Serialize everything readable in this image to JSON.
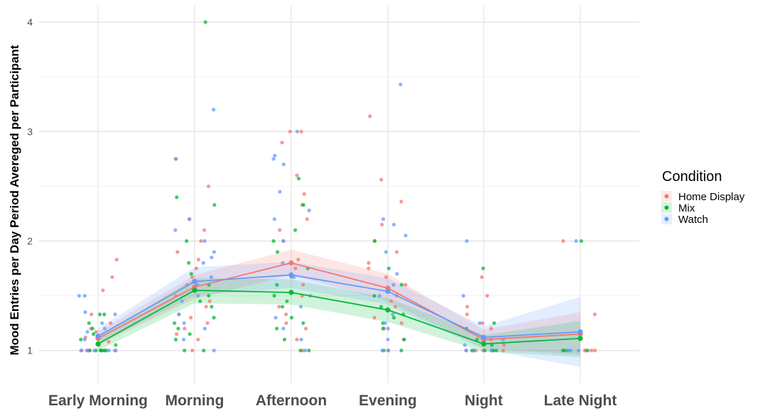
{
  "chart_data": {
    "type": "line",
    "title": "",
    "xlabel": "",
    "ylabel": "Mood Entries per Day Period Avereged per Participant",
    "categories": [
      "Early Morning",
      "Morning",
      "Afternoon",
      "Evening",
      "Night",
      "Late Night"
    ],
    "ylim": [
      0.7,
      4.15
    ],
    "yticks": [
      "1",
      "2",
      "3",
      "4"
    ],
    "grid": true,
    "legend": {
      "title": "Condition",
      "position": "right"
    },
    "series": [
      {
        "name": "Home Display",
        "color": "#f8766d",
        "values": [
          1.11,
          1.58,
          1.8,
          1.57,
          1.1,
          1.15
        ],
        "ci_low": [
          1.05,
          1.47,
          1.69,
          1.45,
          1.02,
          0.96
        ],
        "ci_high": [
          1.17,
          1.69,
          1.92,
          1.7,
          1.19,
          1.35
        ],
        "points": [
          [
            0,
            1
          ],
          [
            0,
            1
          ],
          [
            0,
            1
          ],
          [
            0,
            1
          ],
          [
            0,
            1
          ],
          [
            0,
            1.08
          ],
          [
            0,
            1.12
          ],
          [
            0,
            1.2
          ],
          [
            0,
            1.25
          ],
          [
            0,
            1.33
          ],
          [
            0,
            1.55
          ],
          [
            0,
            1.67
          ],
          [
            0,
            1.83
          ],
          [
            0,
            1.05
          ],
          [
            0,
            1
          ],
          [
            0,
            1.17
          ],
          [
            1,
            1
          ],
          [
            1,
            1.1
          ],
          [
            1,
            1.2
          ],
          [
            1,
            1.25
          ],
          [
            1,
            1.33
          ],
          [
            1,
            1.4
          ],
          [
            1,
            1.5
          ],
          [
            1,
            1.6
          ],
          [
            1,
            1.67
          ],
          [
            1,
            1.75
          ],
          [
            1,
            1.83
          ],
          [
            1,
            2
          ],
          [
            1,
            2.1
          ],
          [
            1,
            2.2
          ],
          [
            1,
            2.5
          ],
          [
            1,
            2.75
          ],
          [
            1,
            1.15
          ],
          [
            1,
            1.3
          ],
          [
            1,
            1.45
          ],
          [
            1,
            1.9
          ],
          [
            2,
            1
          ],
          [
            2,
            1.1
          ],
          [
            2,
            1.2
          ],
          [
            2,
            1.33
          ],
          [
            2,
            1.5
          ],
          [
            2,
            1.6
          ],
          [
            2,
            1.75
          ],
          [
            2,
            1.83
          ],
          [
            2,
            2
          ],
          [
            2,
            2.2
          ],
          [
            2,
            2.33
          ],
          [
            2,
            2.43
          ],
          [
            2,
            2.6
          ],
          [
            2,
            3
          ],
          [
            2,
            3
          ],
          [
            2,
            2.9
          ],
          [
            2,
            1.4
          ],
          [
            2,
            1.67
          ],
          [
            2,
            2.1
          ],
          [
            2,
            1.25
          ],
          [
            3,
            1
          ],
          [
            3,
            1.1
          ],
          [
            3,
            1.2
          ],
          [
            3,
            1.3
          ],
          [
            3,
            1.4
          ],
          [
            3,
            1.5
          ],
          [
            3,
            1.6
          ],
          [
            3,
            1.75
          ],
          [
            3,
            1.9
          ],
          [
            3,
            2
          ],
          [
            3,
            2.15
          ],
          [
            3,
            2.36
          ],
          [
            3,
            2.56
          ],
          [
            3,
            3.14
          ],
          [
            3,
            1.67
          ],
          [
            3,
            1.25
          ],
          [
            3,
            1.45
          ],
          [
            3,
            1.8
          ],
          [
            4,
            1
          ],
          [
            4,
            1
          ],
          [
            4,
            1
          ],
          [
            4,
            1
          ],
          [
            4,
            1.1
          ],
          [
            4,
            1.2
          ],
          [
            4,
            1.25
          ],
          [
            4,
            1.4
          ],
          [
            4,
            1.5
          ],
          [
            4,
            1.67
          ],
          [
            4,
            1.05
          ],
          [
            4,
            1.33
          ],
          [
            5,
            1
          ],
          [
            5,
            1
          ],
          [
            5,
            1
          ],
          [
            5,
            2
          ],
          [
            5,
            1.33
          ],
          [
            5,
            1
          ]
        ]
      },
      {
        "name": "Mix",
        "color": "#00ba38",
        "values": [
          1.06,
          1.55,
          1.53,
          1.37,
          1.06,
          1.11
        ],
        "ci_low": [
          1.0,
          1.43,
          1.42,
          1.26,
          0.99,
          0.94
        ],
        "ci_high": [
          1.12,
          1.66,
          1.65,
          1.48,
          1.14,
          1.27
        ],
        "points": [
          [
            0,
            1
          ],
          [
            0,
            1
          ],
          [
            0,
            1
          ],
          [
            0,
            1
          ],
          [
            0,
            1
          ],
          [
            0,
            1
          ],
          [
            0,
            1.05
          ],
          [
            0,
            1.1
          ],
          [
            0,
            1.2
          ],
          [
            0,
            1.33
          ],
          [
            0,
            1.33
          ],
          [
            0,
            1.25
          ],
          [
            0,
            1
          ],
          [
            0,
            1.15
          ],
          [
            1,
            1
          ],
          [
            1,
            1
          ],
          [
            1,
            1.1
          ],
          [
            1,
            1.2
          ],
          [
            1,
            1.3
          ],
          [
            1,
            1.4
          ],
          [
            1,
            1.5
          ],
          [
            1,
            1.6
          ],
          [
            1,
            1.7
          ],
          [
            1,
            1.8
          ],
          [
            1,
            2
          ],
          [
            1,
            2.33
          ],
          [
            1,
            2.4
          ],
          [
            1,
            4
          ],
          [
            1,
            1.25
          ],
          [
            1,
            1.15
          ],
          [
            1,
            1.45
          ],
          [
            2,
            1
          ],
          [
            2,
            1
          ],
          [
            2,
            1.1
          ],
          [
            2,
            1.2
          ],
          [
            2,
            1.3
          ],
          [
            2,
            1.4
          ],
          [
            2,
            1.5
          ],
          [
            2,
            1.6
          ],
          [
            2,
            1.75
          ],
          [
            2,
            1.9
          ],
          [
            2,
            2
          ],
          [
            2,
            2.1
          ],
          [
            2,
            2.33
          ],
          [
            2,
            2.57
          ],
          [
            2,
            1.25
          ],
          [
            2,
            1.45
          ],
          [
            3,
            1
          ],
          [
            3,
            1.1
          ],
          [
            3,
            1.2
          ],
          [
            3,
            1.3
          ],
          [
            3,
            1.4
          ],
          [
            3,
            1.5
          ],
          [
            3,
            1.6
          ],
          [
            3,
            1.75
          ],
          [
            3,
            2
          ],
          [
            3,
            1.25
          ],
          [
            3,
            1.33
          ],
          [
            3,
            1
          ],
          [
            4,
            1
          ],
          [
            4,
            1
          ],
          [
            4,
            1
          ],
          [
            4,
            1
          ],
          [
            4,
            1
          ],
          [
            4,
            1.05
          ],
          [
            4,
            1.1
          ],
          [
            4,
            1.2
          ],
          [
            4,
            1.25
          ],
          [
            4,
            1.75
          ],
          [
            4,
            1
          ],
          [
            5,
            1
          ],
          [
            5,
            1
          ],
          [
            5,
            1
          ],
          [
            5,
            1
          ],
          [
            5,
            2
          ]
        ]
      },
      {
        "name": "Watch",
        "color": "#619cff",
        "values": [
          1.13,
          1.63,
          1.69,
          1.54,
          1.12,
          1.17
        ],
        "ci_low": [
          1.06,
          1.5,
          1.57,
          1.42,
          1.01,
          0.85
        ],
        "ci_high": [
          1.2,
          1.76,
          1.81,
          1.66,
          1.22,
          1.49
        ],
        "points": [
          [
            0,
            1
          ],
          [
            0,
            1
          ],
          [
            0,
            1
          ],
          [
            0,
            1
          ],
          [
            0,
            1.1
          ],
          [
            0,
            1.2
          ],
          [
            0,
            1.25
          ],
          [
            0,
            1.33
          ],
          [
            0,
            1.35
          ],
          [
            0,
            1.5
          ],
          [
            0,
            1.5
          ],
          [
            0,
            1.17
          ],
          [
            0,
            1
          ],
          [
            1,
            1
          ],
          [
            1,
            1.1
          ],
          [
            1,
            1.2
          ],
          [
            1,
            1.33
          ],
          [
            1,
            1.5
          ],
          [
            1,
            1.6
          ],
          [
            1,
            1.67
          ],
          [
            1,
            1.8
          ],
          [
            1,
            1.9
          ],
          [
            1,
            2
          ],
          [
            1,
            2.1
          ],
          [
            1,
            2.2
          ],
          [
            1,
            2.75
          ],
          [
            1,
            3.2
          ],
          [
            1,
            1.45
          ],
          [
            1,
            1.25
          ],
          [
            1,
            1.85
          ],
          [
            2,
            1
          ],
          [
            2,
            1.1
          ],
          [
            2,
            1.2
          ],
          [
            2,
            1.4
          ],
          [
            2,
            1.5
          ],
          [
            2,
            1.67
          ],
          [
            2,
            1.8
          ],
          [
            2,
            2
          ],
          [
            2,
            2.2
          ],
          [
            2,
            2.28
          ],
          [
            2,
            2.45
          ],
          [
            2,
            2.7
          ],
          [
            2,
            2.75
          ],
          [
            2,
            2.78
          ],
          [
            2,
            3
          ],
          [
            2,
            1.3
          ],
          [
            3,
            1
          ],
          [
            3,
            1.1
          ],
          [
            3,
            1.2
          ],
          [
            3,
            1.25
          ],
          [
            3,
            1.5
          ],
          [
            3,
            1.6
          ],
          [
            3,
            1.7
          ],
          [
            3,
            1.9
          ],
          [
            3,
            2.05
          ],
          [
            3,
            2.15
          ],
          [
            3,
            2.2
          ],
          [
            3,
            3.43
          ],
          [
            3,
            1.33
          ],
          [
            3,
            1
          ],
          [
            4,
            1
          ],
          [
            4,
            1
          ],
          [
            4,
            1
          ],
          [
            4,
            1.1
          ],
          [
            4,
            1.25
          ],
          [
            4,
            1.5
          ],
          [
            4,
            2
          ],
          [
            4,
            1.05
          ],
          [
            5,
            1
          ],
          [
            5,
            1
          ],
          [
            5,
            2
          ],
          [
            5,
            1
          ]
        ]
      }
    ]
  }
}
